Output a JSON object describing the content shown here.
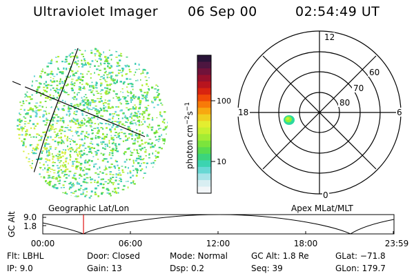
{
  "header": {
    "instrument": "Ultraviolet Imager",
    "date": "06 Sep 00",
    "time": "02:54:49 UT"
  },
  "colorbar": {
    "label_base": "photon cm",
    "label_exp1": "−2",
    "label_s": "s",
    "label_exp2": "−1",
    "ticks": [
      "100",
      "10"
    ],
    "colors": [
      "#2a1438",
      "#4d1640",
      "#70123a",
      "#96102c",
      "#b8141e",
      "#d82410",
      "#f04a08",
      "#f87a08",
      "#f8a810",
      "#f0d020",
      "#e4ee30",
      "#c8f030",
      "#a4ec34",
      "#7ce43c",
      "#58dc50",
      "#3cd47c",
      "#3cd4b0",
      "#68d8d4",
      "#a8e4e8",
      "#d8eef2",
      "#f2f6f8"
    ]
  },
  "polar_plot": {
    "mlt_labels": [
      "12",
      "18",
      "6",
      "0"
    ],
    "lat_labels": [
      "60",
      "70",
      "80"
    ],
    "blob_colors": [
      "#2bd9a0",
      "#8df03a",
      "#c8f030"
    ]
  },
  "image_dots": {
    "colors": [
      "#64dc3c",
      "#40d27a",
      "#3acbb0",
      "#66d4d6",
      "#8ee63a",
      "#b2ee34",
      "#d8ee40"
    ]
  },
  "timeline": {
    "left_caption": "Geographic Lat/Lon",
    "right_caption": "Apex  MLat/MLT",
    "axis_title": "GC Alt",
    "y_ticks": [
      "9.0",
      "1.8"
    ],
    "x_ticks": [
      "00:00",
      "06:00",
      "12:00",
      "18:00",
      "23:59"
    ],
    "marker_color": "#e01010"
  },
  "info": {
    "flt": "Flt: LBHL",
    "ip": "IP:  9.0",
    "door": "Door: Closed",
    "gain": "Gain: 13",
    "mode": "Mode: Normal",
    "dsp": "Dsp:     0.2",
    "gcalt": "GC Alt: 1.8 Re",
    "seq": "Seq: 39",
    "glat": "GLat: −71.8",
    "glon": "GLon: 179.7"
  }
}
